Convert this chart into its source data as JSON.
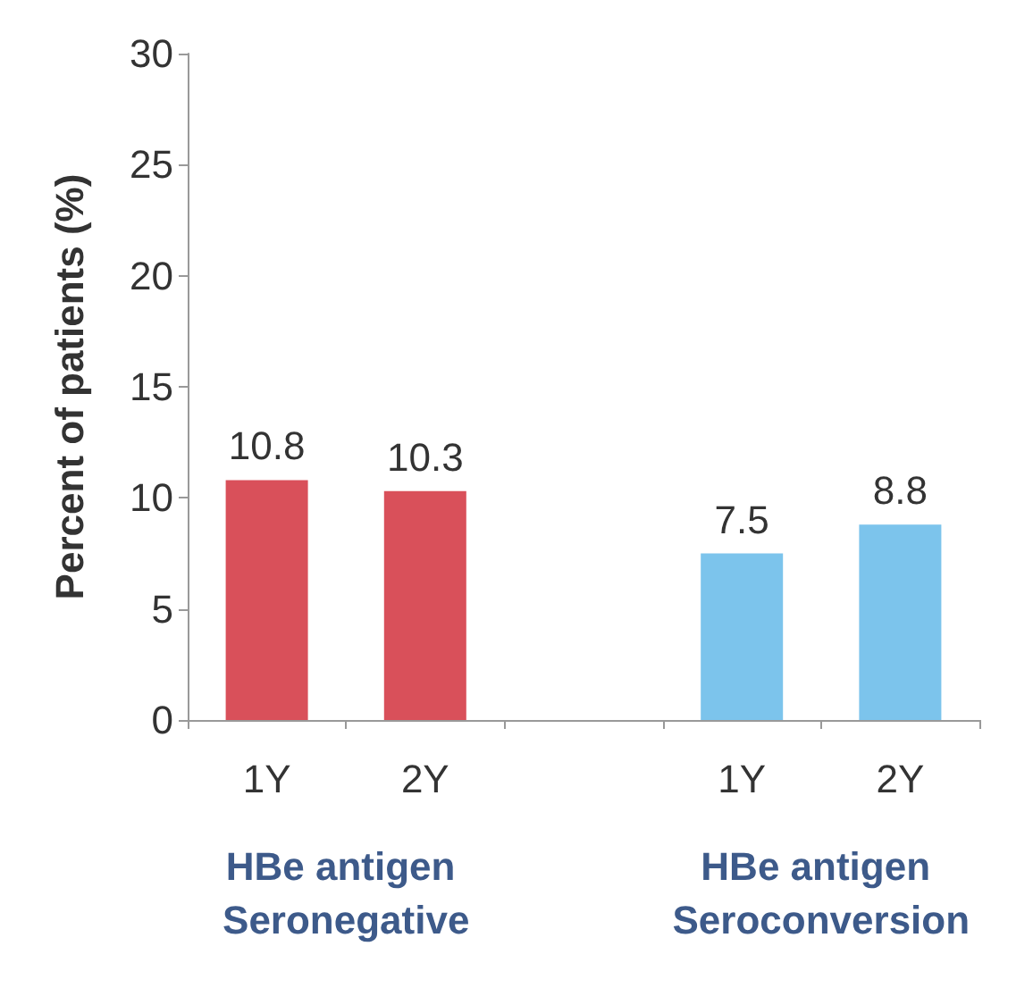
{
  "chart_data": {
    "type": "bar",
    "ylabel": "Percent of patients (%)",
    "categories": [
      "1Y",
      "2Y",
      null,
      "1Y",
      "2Y"
    ],
    "values": [
      10.8,
      10.3,
      null,
      7.5,
      8.8
    ],
    "colors": [
      "#d9505a",
      "#d9505a",
      "#d9505a",
      "#7cc4ec",
      "#7cc4ec"
    ],
    "ylim": [
      0,
      30
    ],
    "yticks": [
      0,
      5,
      10,
      15,
      20,
      25,
      30
    ],
    "grid": false,
    "data_labels": true,
    "annotations": [
      "HBe antigen Seronegative",
      "HBe antigen Seroconversion"
    ]
  }
}
